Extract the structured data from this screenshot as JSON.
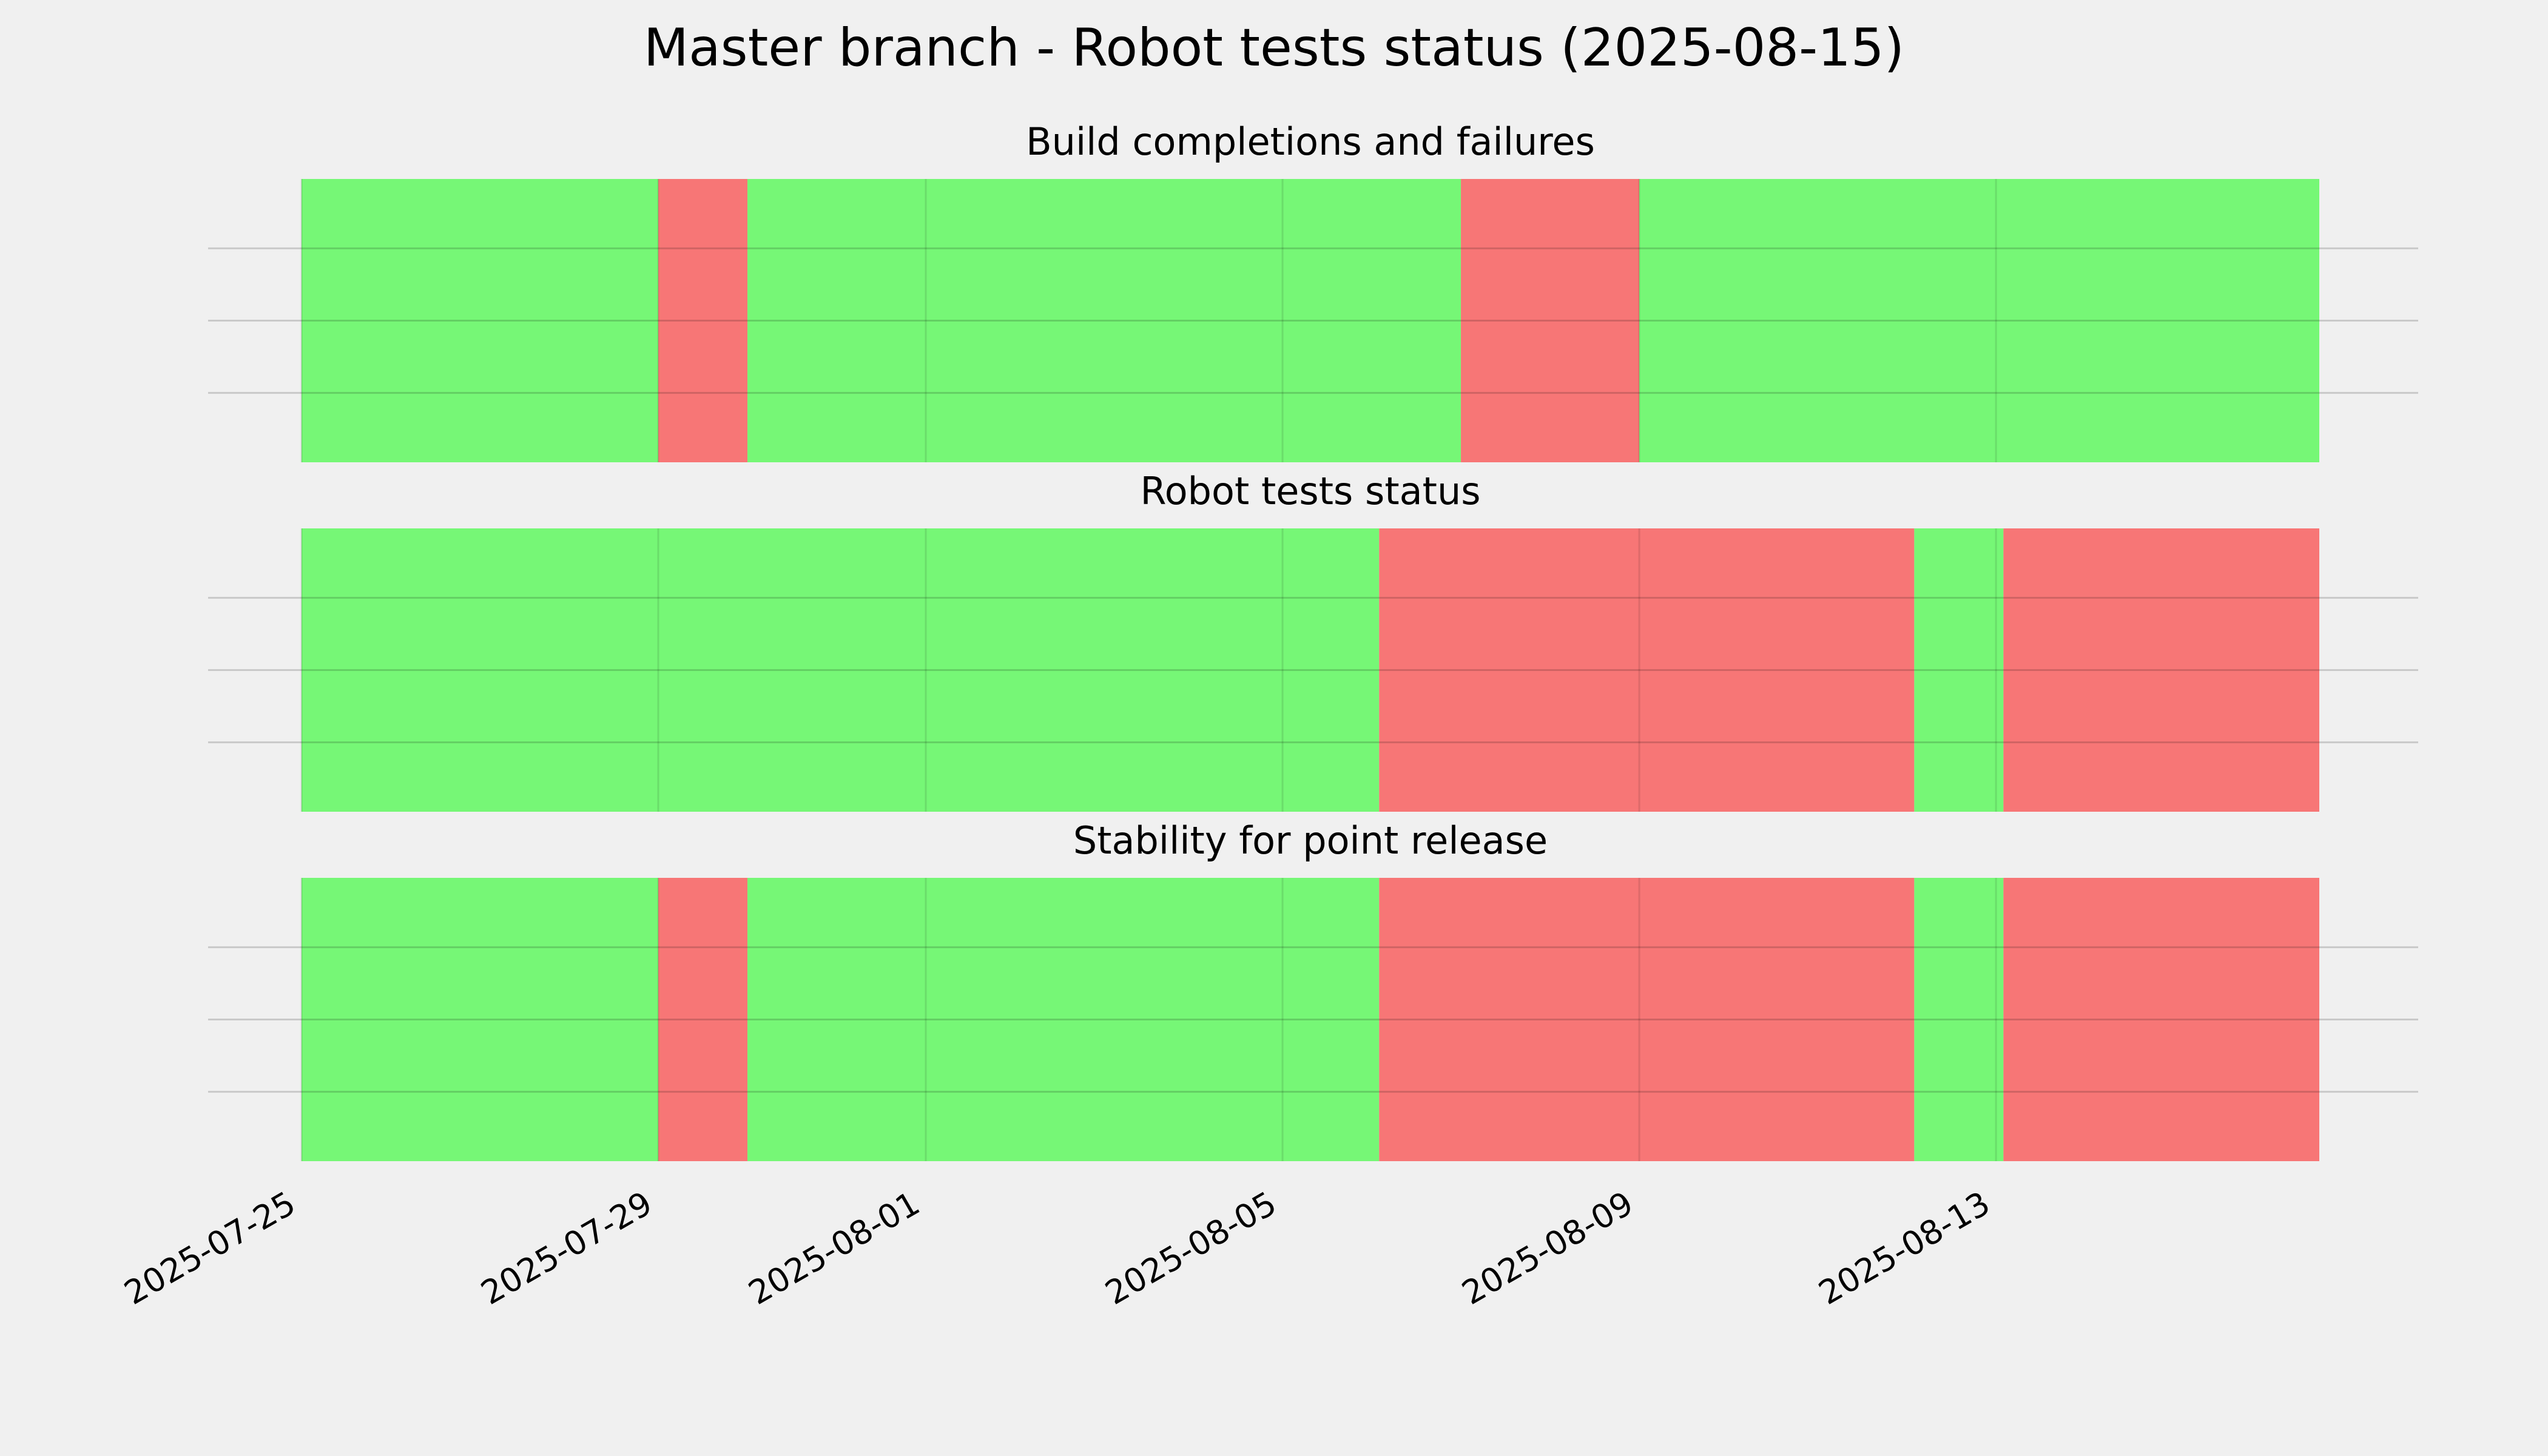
{
  "chart_data": {
    "type": "timeline",
    "title": "Master branch - Robot tests status (2025-08-15)",
    "x_axis": {
      "type": "date",
      "range": [
        "2025-07-25",
        "2025-08-16 15:00"
      ],
      "ticks": [
        "2025-07-25",
        "2025-07-29",
        "2025-08-01",
        "2025-08-05",
        "2025-08-09",
        "2025-08-13"
      ]
    },
    "colors": {
      "success": "#76f776",
      "failure": "#f77676"
    },
    "grid": true,
    "panels": [
      {
        "title": "Build completions and failures",
        "segments": [
          {
            "start": "2025-07-25",
            "end": "2025-07-29",
            "status": "success"
          },
          {
            "start": "2025-07-29",
            "end": "2025-07-30",
            "status": "failure"
          },
          {
            "start": "2025-07-30",
            "end": "2025-08-07",
            "status": "success"
          },
          {
            "start": "2025-08-07",
            "end": "2025-08-09",
            "status": "failure"
          },
          {
            "start": "2025-08-09",
            "end": "2025-08-16 15:00",
            "status": "success"
          }
        ]
      },
      {
        "title": "Robot tests status",
        "segments": [
          {
            "start": "2025-07-25",
            "end": "2025-08-06 02:00",
            "status": "success"
          },
          {
            "start": "2025-08-06 02:00",
            "end": "2025-08-12 02:00",
            "status": "failure"
          },
          {
            "start": "2025-08-12 02:00",
            "end": "2025-08-13 02:00",
            "status": "success"
          },
          {
            "start": "2025-08-13 02:00",
            "end": "2025-08-16 15:00",
            "status": "failure"
          }
        ]
      },
      {
        "title": "Stability for point release",
        "segments": [
          {
            "start": "2025-07-25",
            "end": "2025-07-29",
            "status": "success"
          },
          {
            "start": "2025-07-29",
            "end": "2025-07-30",
            "status": "failure"
          },
          {
            "start": "2025-07-30",
            "end": "2025-08-06 02:00",
            "status": "success"
          },
          {
            "start": "2025-08-06 02:00",
            "end": "2025-08-12 02:00",
            "status": "failure"
          },
          {
            "start": "2025-08-12 02:00",
            "end": "2025-08-13 02:00",
            "status": "success"
          },
          {
            "start": "2025-08-13 02:00",
            "end": "2025-08-16 15:00",
            "status": "failure"
          }
        ]
      }
    ]
  }
}
